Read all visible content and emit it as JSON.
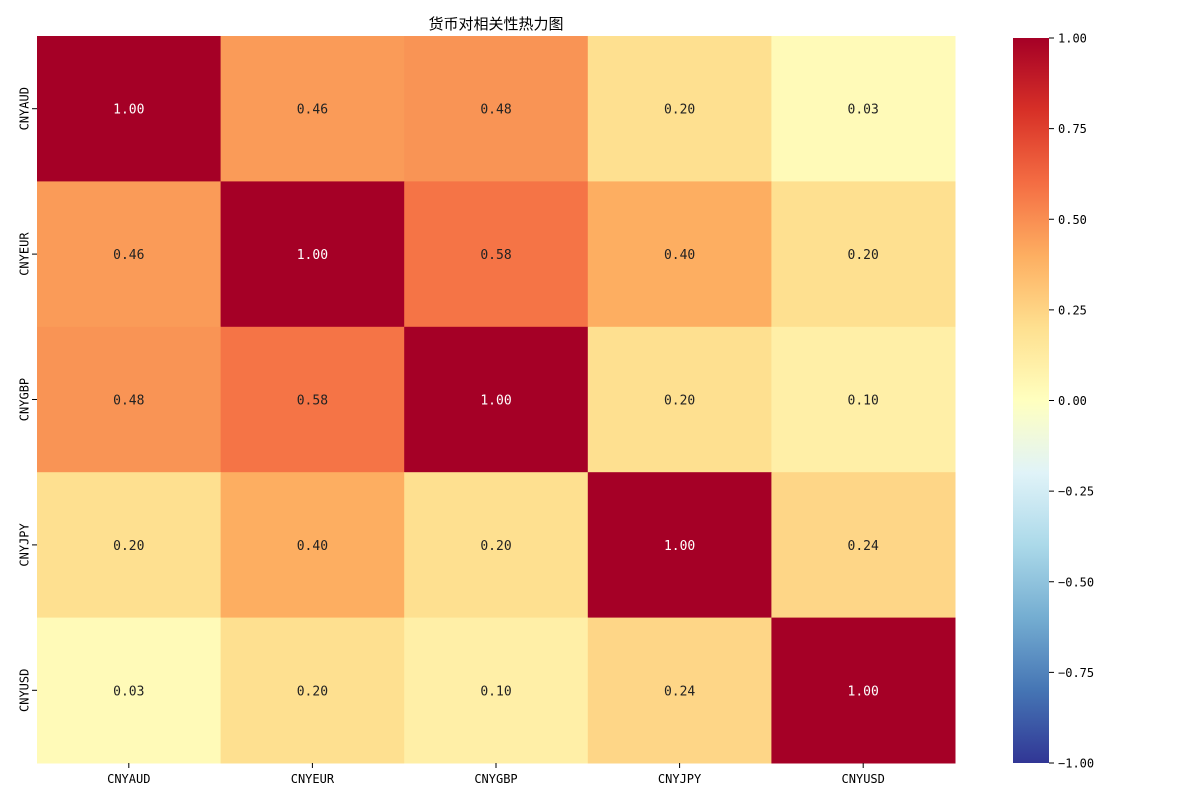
{
  "chart_data": {
    "type": "heatmap",
    "title": "货币对相关性热力图",
    "x_labels": [
      "CNYAUD",
      "CNYEUR",
      "CNYGBP",
      "CNYJPY",
      "CNYUSD"
    ],
    "y_labels": [
      "CNYAUD",
      "CNYEUR",
      "CNYGBP",
      "CNYJPY",
      "CNYUSD"
    ],
    "matrix": [
      [
        1.0,
        0.46,
        0.48,
        0.2,
        0.03
      ],
      [
        0.46,
        1.0,
        0.58,
        0.4,
        0.2
      ],
      [
        0.48,
        0.58,
        1.0,
        0.2,
        0.1
      ],
      [
        0.2,
        0.4,
        0.2,
        1.0,
        0.24
      ],
      [
        0.03,
        0.2,
        0.1,
        0.24,
        1.0
      ]
    ],
    "value_format": "0.00",
    "colormap": "RdYlBu_r",
    "vmin": -1.0,
    "vmax": 1.0,
    "colorbar_ticks": [
      1.0,
      0.75,
      0.5,
      0.25,
      0.0,
      -0.25,
      -0.5,
      -0.75,
      -1.0
    ],
    "colorbar_tick_labels": [
      "1.00",
      "0.75",
      "0.50",
      "0.25",
      "0.00",
      "−0.25",
      "−0.50",
      "−0.75",
      "−1.00"
    ],
    "colorbar_placement": "right"
  }
}
